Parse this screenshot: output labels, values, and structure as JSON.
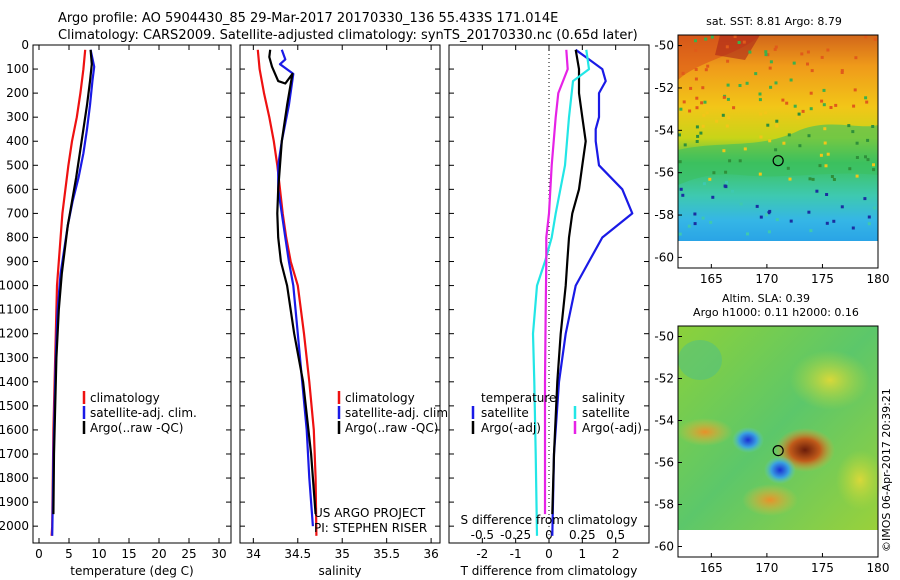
{
  "header": {
    "line1": "Argo profile: AO 5904430_85 29-Mar-2017 20170330_136 55.433S 171.014E",
    "line2": "Climatology: CARS2009. Satellite-adjusted climatology: synTS_20170330.nc (0.65d later)"
  },
  "colors": {
    "red": "#ee1111",
    "blue": "#1a1ae6",
    "black": "#000000",
    "cyan": "#22e6e6",
    "magenta": "#e622e6"
  },
  "chart_data": [
    {
      "type": "line",
      "id": "temperature",
      "xlabel": "temperature (deg C)",
      "xlim": [
        -1,
        32
      ],
      "ylim": [
        2070,
        0
      ],
      "xticks": [
        0,
        5,
        10,
        15,
        20,
        25,
        30
      ],
      "yticks": [
        0,
        100,
        200,
        300,
        400,
        500,
        600,
        700,
        800,
        900,
        1000,
        1100,
        1200,
        1300,
        1400,
        1500,
        1600,
        1700,
        1800,
        1900,
        2000
      ],
      "legend": {
        "position": "lower-middle",
        "entries": [
          "climatology",
          "satellite-adj. clim.",
          "Argo(..raw -QC)"
        ]
      },
      "series": [
        {
          "name": "climatology",
          "color": "red",
          "x": [
            7.7,
            7.4,
            6.9,
            6.3,
            5.5,
            4.9,
            4.4,
            3.9,
            3.6,
            3.3,
            3.0,
            2.8,
            2.6,
            2.4,
            2.3,
            2.2,
            2.1
          ],
          "y": [
            20,
            100,
            200,
            300,
            400,
            500,
            600,
            700,
            800,
            900,
            1000,
            1200,
            1400,
            1600,
            1800,
            2000,
            2040
          ]
        },
        {
          "name": "satellite-adj. clim.",
          "color": "blue",
          "x": [
            8.6,
            9.2,
            8.9,
            8.5,
            8.0,
            7.4,
            6.6,
            5.6,
            4.8,
            4.2,
            3.6,
            3.1,
            2.8,
            2.6,
            2.4,
            2.3,
            2.2
          ],
          "y": [
            20,
            90,
            150,
            250,
            350,
            450,
            550,
            650,
            750,
            850,
            950,
            1100,
            1300,
            1500,
            1700,
            1900,
            2040
          ]
        },
        {
          "name": "Argo(..raw -QC)",
          "color": "black",
          "x": [
            8.6,
            8.8,
            8.5,
            8.0,
            7.4,
            6.8,
            6.2,
            5.5,
            4.8,
            4.3,
            3.8,
            3.3,
            2.9,
            2.7,
            2.5,
            2.4
          ],
          "y": [
            20,
            80,
            150,
            250,
            350,
            450,
            550,
            650,
            750,
            850,
            950,
            1100,
            1300,
            1500,
            1700,
            1950
          ]
        }
      ]
    },
    {
      "type": "line",
      "id": "salinity",
      "xlabel": "salinity",
      "xlim": [
        33.85,
        36.1
      ],
      "ylim": [
        2070,
        0
      ],
      "xticks": [
        34,
        34.5,
        35,
        35.5,
        36
      ],
      "legend": {
        "position": "lower-middle",
        "entries": [
          "climatology",
          "satellite-adj. clim.",
          "Argo(..raw -QC)"
        ]
      },
      "annotations": [
        "US ARGO PROJECT",
        "PI: STEPHEN RISER"
      ],
      "series": [
        {
          "name": "climatology",
          "color": "red",
          "x": [
            34.05,
            34.07,
            34.12,
            34.18,
            34.23,
            34.27,
            34.3,
            34.33,
            34.37,
            34.42,
            34.5,
            34.57,
            34.63,
            34.68,
            34.7,
            34.71
          ],
          "y": [
            20,
            100,
            200,
            300,
            400,
            500,
            600,
            700,
            800,
            900,
            1000,
            1200,
            1400,
            1600,
            1800,
            2040
          ]
        },
        {
          "name": "satellite-adj. clim.",
          "color": "blue",
          "x": [
            34.32,
            34.36,
            34.3,
            34.45,
            34.4,
            34.32,
            34.28,
            34.28,
            34.32,
            34.36,
            34.4,
            34.45,
            34.5,
            34.55,
            34.6,
            34.63,
            34.67
          ],
          "y": [
            20,
            60,
            80,
            120,
            250,
            400,
            500,
            600,
            700,
            800,
            900,
            1000,
            1200,
            1400,
            1600,
            1800,
            2000
          ]
        },
        {
          "name": "Argo(..raw -QC)",
          "color": "black",
          "x": [
            34.19,
            34.18,
            34.21,
            34.28,
            34.36,
            34.44,
            34.38,
            34.32,
            34.3,
            34.28,
            34.27,
            34.28,
            34.31,
            34.38,
            34.46,
            34.56,
            34.65,
            34.7
          ],
          "y": [
            20,
            50,
            90,
            150,
            160,
            120,
            250,
            400,
            500,
            600,
            700,
            800,
            900,
            1000,
            1200,
            1400,
            1700,
            1950
          ]
        }
      ]
    },
    {
      "type": "line",
      "id": "differences",
      "xlabel": "T difference from climatology",
      "xlabel2": "S difference from climatology",
      "xlim": [
        -3,
        3
      ],
      "ylim": [
        2070,
        0
      ],
      "xticks_T": [
        -2,
        -1,
        0,
        1,
        2
      ],
      "xticks_S": [
        -0.5,
        -0.25,
        0,
        0.25,
        0.5
      ],
      "s_scale": 4,
      "legend": {
        "position": "lower-middle",
        "temperature_title": "temperature",
        "salinity_title": "salinity",
        "entries": [
          "satellite",
          "Argo(-adj)",
          "satellite",
          "Argo(-adj)"
        ]
      },
      "series": [
        {
          "name": "satellite",
          "group": "temperature",
          "color": "blue",
          "x": [
            0.8,
            1.2,
            1.6,
            1.7,
            1.5,
            1.5,
            1.4,
            1.4,
            1.5,
            2.2,
            2.5,
            1.6,
            1.2,
            0.8,
            0.5,
            0.3,
            0.15,
            0.1
          ],
          "y": [
            20,
            60,
            100,
            150,
            200,
            300,
            350,
            400,
            500,
            600,
            700,
            800,
            900,
            1000,
            1200,
            1400,
            1700,
            2040
          ]
        },
        {
          "name": "Argo(-adj)",
          "group": "temperature",
          "color": "black",
          "x": [
            0.8,
            0.9,
            0.9,
            0.9,
            1.0,
            1.1,
            1.0,
            0.9,
            0.7,
            0.6,
            0.55,
            0.5,
            0.35,
            0.25,
            0.15,
            0.1
          ],
          "y": [
            20,
            100,
            150,
            200,
            300,
            400,
            500,
            600,
            700,
            800,
            900,
            1000,
            1200,
            1400,
            1700,
            1950
          ]
        },
        {
          "name": "satellite",
          "group": "salinity",
          "color": "cyan",
          "x": [
            0.28,
            0.3,
            0.18,
            0.15,
            0.12,
            0.05,
            0.02,
            -0.03,
            -0.09,
            -0.12,
            -0.11,
            -0.1,
            -0.09
          ],
          "y": [
            20,
            100,
            150,
            300,
            500,
            700,
            800,
            900,
            1000,
            1200,
            1400,
            1700,
            2040
          ]
        },
        {
          "name": "Argo(-adj)",
          "group": "salinity",
          "color": "magenta",
          "x": [
            0.13,
            0.14,
            0.07,
            0.05,
            0.02,
            0.0,
            -0.02,
            -0.02,
            -0.025,
            -0.03,
            -0.03,
            -0.03
          ],
          "y": [
            20,
            100,
            200,
            300,
            500,
            700,
            800,
            900,
            1100,
            1400,
            1700,
            1950
          ]
        }
      ]
    },
    {
      "type": "heatmap",
      "id": "sst-map",
      "title": "sat. SST: 8.81  Argo: 8.79",
      "xlim": [
        162,
        180
      ],
      "ylim": [
        -60.5,
        -49.5
      ],
      "xticks": [
        165,
        170,
        175,
        180
      ],
      "yticks": [
        -50,
        -52,
        -54,
        -56,
        -58,
        -60
      ],
      "marker": {
        "lon": 171.014,
        "lat": -55.433
      }
    },
    {
      "type": "heatmap",
      "id": "sla-map",
      "title": "Altim. SLA: 0.39",
      "subtitle": "Argo h1000: 0.11 h2000: 0.16",
      "xlim": [
        162,
        180
      ],
      "ylim": [
        -60.5,
        -49.5
      ],
      "xticks": [
        165,
        170,
        175,
        180
      ],
      "yticks": [
        -50,
        -52,
        -54,
        -56,
        -58,
        -60
      ],
      "marker": {
        "lon": 171.014,
        "lat": -55.433
      }
    }
  ],
  "credit": "©IMOS 06-Apr-2017 20:39:21"
}
